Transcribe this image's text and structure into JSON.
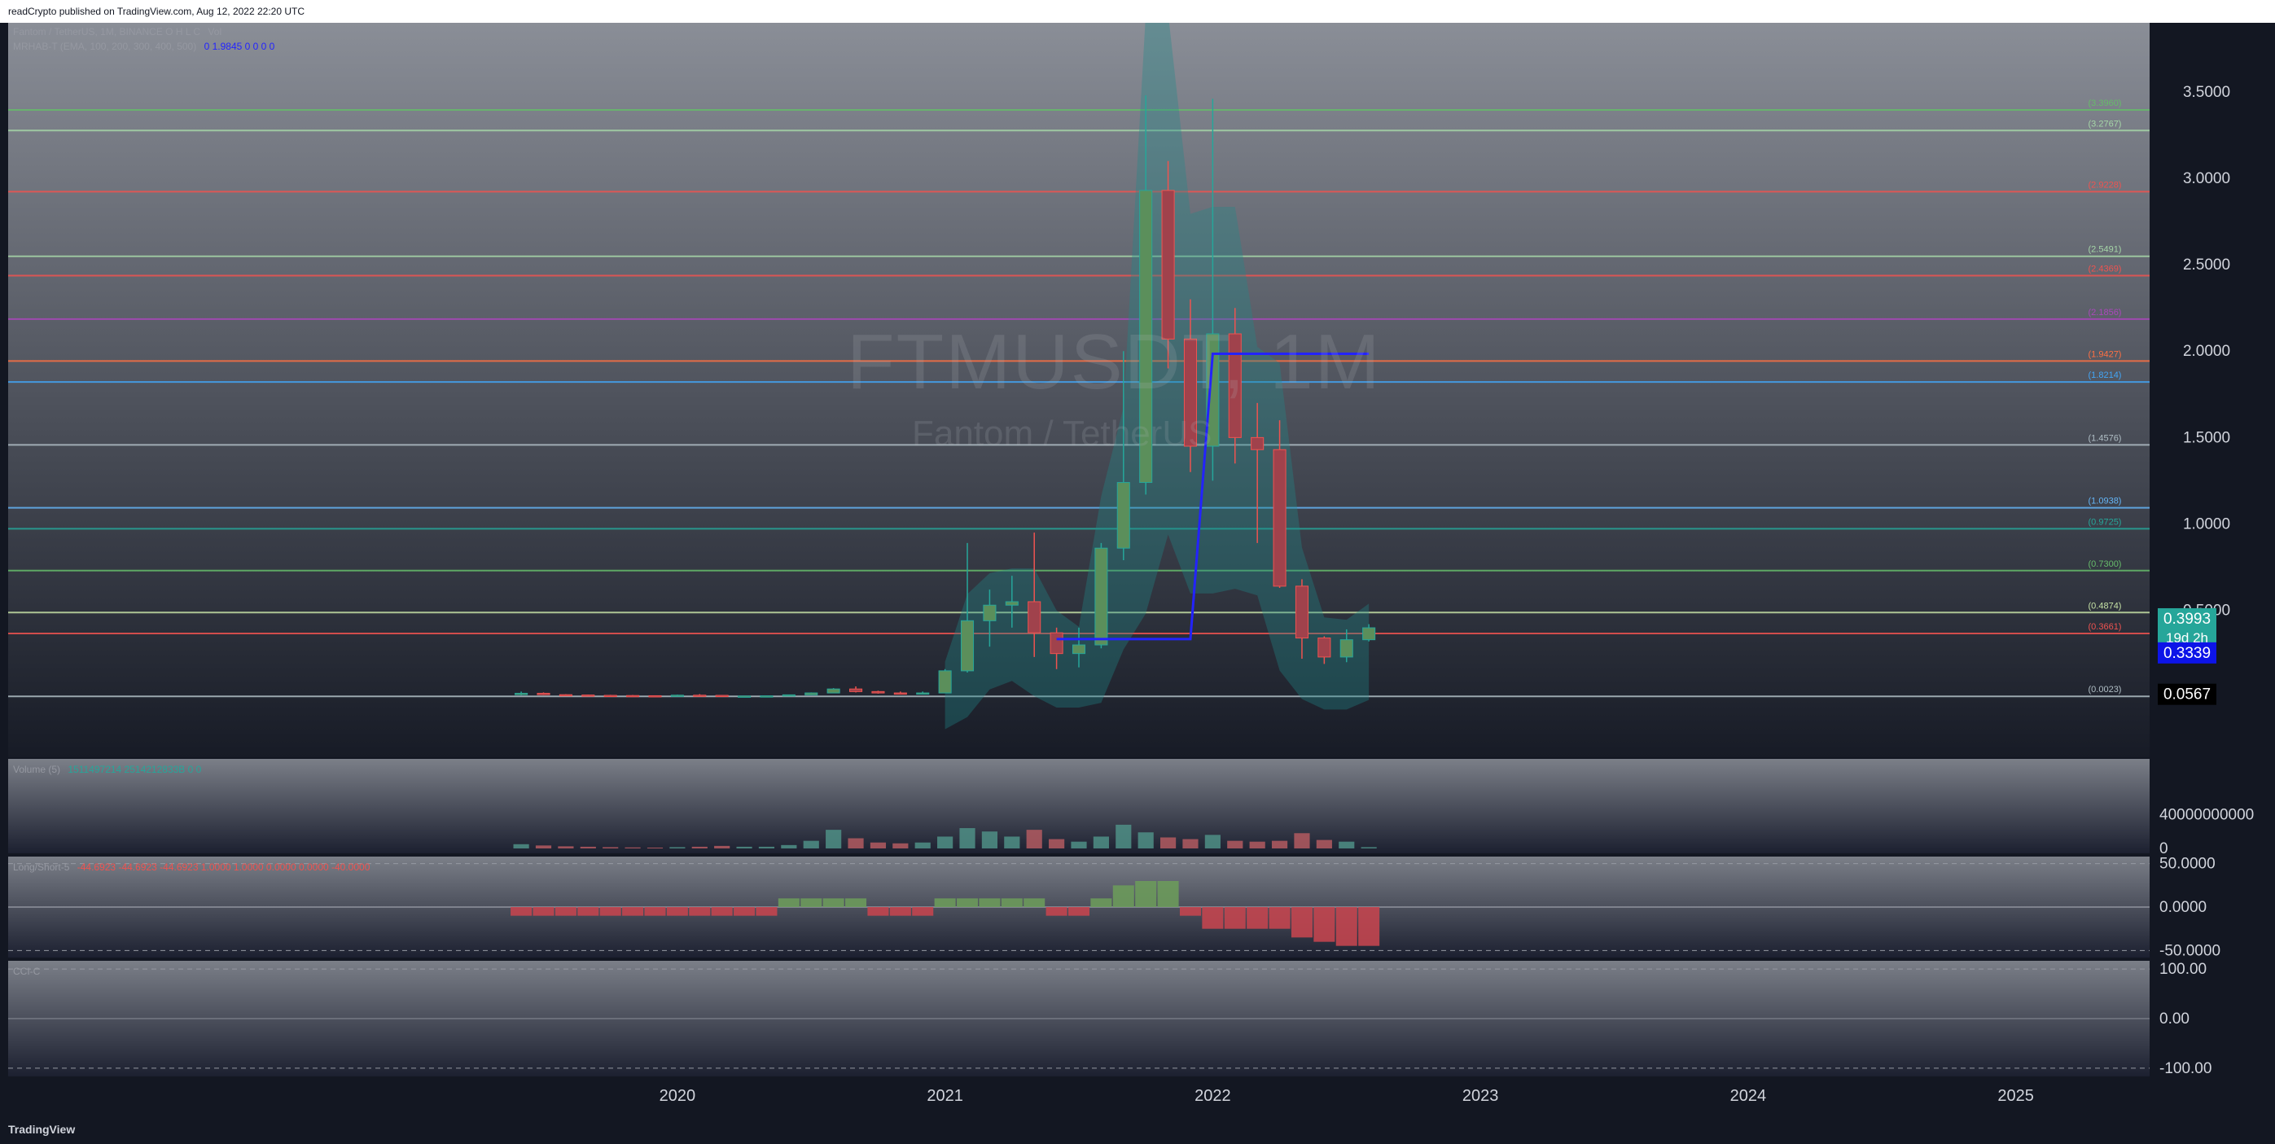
{
  "header": {
    "published_text": "readCrypto published on TradingView.com, Aug 12, 2022 22:20 UTC"
  },
  "footer": {
    "logo_text": "TradingView"
  },
  "watermark": {
    "symbol": "FTMUSDT, 1M",
    "name": "Fantom / TetherUS"
  },
  "legends": {
    "main": "Fantom / TetherUS, 1M, BINANCE  O  H  L  C",
    "main_vol": "Vol",
    "indicator": "MRHAB-T (EMA, 100, 200, 300, 400, 500)",
    "indicator_values": "0  1.9845  0  0  0  0",
    "volume": "Volume (5)",
    "volume_values": "1511497214  2514212833B  0  0",
    "longshort": "Long/Short-5",
    "longshort_values": "-44.6923  -44.6923  -44.6923  1.0000  1.0000  0.0000  0.0000  -40.0000",
    "cci": "CCI-C"
  },
  "price_axis": {
    "ticks": [
      "3.5000",
      "3.0000",
      "2.5000",
      "2.0000",
      "1.5000",
      "1.0000",
      "0.5000"
    ],
    "badges": [
      {
        "label": "0.3993",
        "sub": "19d 2h",
        "color": "#26a69a"
      },
      {
        "label": "0.3339",
        "color": "#0d14e8"
      },
      {
        "label": "0.0567",
        "color": "#000000"
      }
    ]
  },
  "volume_axis": {
    "ticks": [
      "40000000000",
      "0"
    ]
  },
  "ls_axis": {
    "ticks": [
      "50.0000",
      "0.0000",
      "-50.0000"
    ]
  },
  "cci_axis": {
    "ticks": [
      "100.00",
      "0.00",
      "-100.00"
    ]
  },
  "time_axis": {
    "ticks": [
      "2020",
      "2021",
      "2022",
      "2023",
      "2024",
      "2025"
    ]
  },
  "levels": [
    {
      "label": "(3.3960)",
      "value": 3.396,
      "color": "#66bb6a"
    },
    {
      "label": "(3.2767)",
      "value": 3.2767,
      "color": "#a5d6a7"
    },
    {
      "label": "(2.9228)",
      "value": 2.9228,
      "color": "#ef5350"
    },
    {
      "label": "(2.5491)",
      "value": 2.5491,
      "color": "#a5d6a7"
    },
    {
      "label": "(2.4369)",
      "value": 2.4369,
      "color": "#ef5350"
    },
    {
      "label": "(2.1856)",
      "value": 2.1856,
      "color": "#ab47bc"
    },
    {
      "label": "(1.9427)",
      "value": 1.9427,
      "color": "#ff7043"
    },
    {
      "label": "(1.8214)",
      "value": 1.8214,
      "color": "#42a5f5"
    },
    {
      "label": "(1.4576)",
      "value": 1.4576,
      "color": "#b0bec5"
    },
    {
      "label": "(1.0938)",
      "value": 1.0938,
      "color": "#64b5f6"
    },
    {
      "label": "(0.9725)",
      "value": 0.9725,
      "color": "#26a69a"
    },
    {
      "label": "(0.7300)",
      "value": 0.73,
      "color": "#66bb6a"
    },
    {
      "label": "(0.4874)",
      "value": 0.4874,
      "color": "#c5e1a5"
    },
    {
      "label": "(0.3661)",
      "value": 0.3661,
      "color": "#ef5350"
    },
    {
      "label": "(0.0023)",
      "value": 0.0023,
      "color": "#b0bec5"
    }
  ],
  "chart_data": {
    "type": "candlestick",
    "title": "FTMUSDT, 1M",
    "subtitle": "Fantom / TetherUS",
    "y_range": [
      -0.35,
      3.9
    ],
    "x_range": [
      "2017-07",
      "2025-07"
    ],
    "candles": [
      {
        "t": "2019-06",
        "o": 0.012,
        "h": 0.03,
        "l": 0.008,
        "c": 0.02
      },
      {
        "t": "2019-07",
        "o": 0.02,
        "h": 0.025,
        "l": 0.01,
        "c": 0.012
      },
      {
        "t": "2019-08",
        "o": 0.012,
        "h": 0.015,
        "l": 0.008,
        "c": 0.01
      },
      {
        "t": "2019-09",
        "o": 0.01,
        "h": 0.012,
        "l": 0.007,
        "c": 0.008
      },
      {
        "t": "2019-10",
        "o": 0.008,
        "h": 0.011,
        "l": 0.006,
        "c": 0.007
      },
      {
        "t": "2019-11",
        "o": 0.007,
        "h": 0.01,
        "l": 0.005,
        "c": 0.006
      },
      {
        "t": "2019-12",
        "o": 0.006,
        "h": 0.008,
        "l": 0.004,
        "c": 0.005
      },
      {
        "t": "2020-01",
        "o": 0.005,
        "h": 0.012,
        "l": 0.004,
        "c": 0.009
      },
      {
        "t": "2020-02",
        "o": 0.009,
        "h": 0.015,
        "l": 0.008,
        "c": 0.008
      },
      {
        "t": "2020-03",
        "o": 0.008,
        "h": 0.009,
        "l": 0.002,
        "c": 0.004
      },
      {
        "t": "2020-04",
        "o": 0.004,
        "h": 0.006,
        "l": 0.003,
        "c": 0.004
      },
      {
        "t": "2020-05",
        "o": 0.004,
        "h": 0.006,
        "l": 0.003,
        "c": 0.005
      },
      {
        "t": "2020-06",
        "o": 0.005,
        "h": 0.012,
        "l": 0.004,
        "c": 0.011
      },
      {
        "t": "2020-07",
        "o": 0.011,
        "h": 0.025,
        "l": 0.01,
        "c": 0.022
      },
      {
        "t": "2020-08",
        "o": 0.022,
        "h": 0.05,
        "l": 0.02,
        "c": 0.045
      },
      {
        "t": "2020-09",
        "o": 0.045,
        "h": 0.06,
        "l": 0.025,
        "c": 0.03
      },
      {
        "t": "2020-10",
        "o": 0.03,
        "h": 0.035,
        "l": 0.018,
        "c": 0.022
      },
      {
        "t": "2020-11",
        "o": 0.022,
        "h": 0.03,
        "l": 0.016,
        "c": 0.018
      },
      {
        "t": "2020-12",
        "o": 0.018,
        "h": 0.03,
        "l": 0.017,
        "c": 0.022
      },
      {
        "t": "2021-01",
        "o": 0.022,
        "h": 0.16,
        "l": 0.02,
        "c": 0.15
      },
      {
        "t": "2021-02",
        "o": 0.15,
        "h": 0.89,
        "l": 0.14,
        "c": 0.44
      },
      {
        "t": "2021-03",
        "o": 0.44,
        "h": 0.62,
        "l": 0.29,
        "c": 0.53
      },
      {
        "t": "2021-04",
        "o": 0.53,
        "h": 0.7,
        "l": 0.4,
        "c": 0.55
      },
      {
        "t": "2021-05",
        "o": 0.55,
        "h": 0.95,
        "l": 0.23,
        "c": 0.37
      },
      {
        "t": "2021-06",
        "o": 0.37,
        "h": 0.4,
        "l": 0.16,
        "c": 0.25
      },
      {
        "t": "2021-07",
        "o": 0.25,
        "h": 0.4,
        "l": 0.17,
        "c": 0.3
      },
      {
        "t": "2021-08",
        "o": 0.3,
        "h": 0.89,
        "l": 0.28,
        "c": 0.86
      },
      {
        "t": "2021-09",
        "o": 0.86,
        "h": 2.0,
        "l": 0.79,
        "c": 1.24
      },
      {
        "t": "2021-10",
        "o": 1.24,
        "h": 3.48,
        "l": 1.17,
        "c": 2.93
      },
      {
        "t": "2021-11",
        "o": 2.93,
        "h": 3.1,
        "l": 1.9,
        "c": 2.07
      },
      {
        "t": "2021-12",
        "o": 2.07,
        "h": 2.3,
        "l": 1.3,
        "c": 1.45
      },
      {
        "t": "2022-01",
        "o": 1.45,
        "h": 3.46,
        "l": 1.25,
        "c": 2.1
      },
      {
        "t": "2022-02",
        "o": 2.1,
        "h": 2.25,
        "l": 1.35,
        "c": 1.5
      },
      {
        "t": "2022-03",
        "o": 1.5,
        "h": 1.7,
        "l": 0.89,
        "c": 1.43
      },
      {
        "t": "2022-04",
        "o": 1.43,
        "h": 1.6,
        "l": 0.63,
        "c": 0.64
      },
      {
        "t": "2022-05",
        "o": 0.64,
        "h": 0.68,
        "l": 0.22,
        "c": 0.34
      },
      {
        "t": "2022-06",
        "o": 0.34,
        "h": 0.35,
        "l": 0.19,
        "c": 0.23
      },
      {
        "t": "2022-07",
        "o": 0.23,
        "h": 0.39,
        "l": 0.2,
        "c": 0.33
      },
      {
        "t": "2022-08",
        "o": 0.33,
        "h": 0.42,
        "l": 0.32,
        "c": 0.399
      }
    ],
    "mrhab_line": [
      {
        "t": "2021-06",
        "v": 0.3339
      },
      {
        "t": "2021-12",
        "v": 0.3339
      },
      {
        "t": "2022-01",
        "v": 1.9845
      },
      {
        "t": "2022-08",
        "v": 1.9845
      }
    ],
    "volume_scale": [
      0,
      100000000000
    ],
    "volume": [
      {
        "t": "2019-06",
        "v": 5000000000,
        "up": true
      },
      {
        "t": "2019-07",
        "v": 3500000000,
        "up": false
      },
      {
        "t": "2019-08",
        "v": 2500000000,
        "up": false
      },
      {
        "t": "2019-09",
        "v": 2000000000,
        "up": false
      },
      {
        "t": "2019-10",
        "v": 1500000000,
        "up": false
      },
      {
        "t": "2019-11",
        "v": 1200000000,
        "up": false
      },
      {
        "t": "2019-12",
        "v": 1000000000,
        "up": false
      },
      {
        "t": "2020-01",
        "v": 1500000000,
        "up": true
      },
      {
        "t": "2020-02",
        "v": 2000000000,
        "up": false
      },
      {
        "t": "2020-03",
        "v": 3000000000,
        "up": false
      },
      {
        "t": "2020-04",
        "v": 2000000000,
        "up": true
      },
      {
        "t": "2020-05",
        "v": 2000000000,
        "up": true
      },
      {
        "t": "2020-06",
        "v": 4000000000,
        "up": true
      },
      {
        "t": "2020-07",
        "v": 9000000000,
        "up": true
      },
      {
        "t": "2020-08",
        "v": 22000000000,
        "up": true
      },
      {
        "t": "2020-09",
        "v": 12000000000,
        "up": false
      },
      {
        "t": "2020-10",
        "v": 7000000000,
        "up": false
      },
      {
        "t": "2020-11",
        "v": 6000000000,
        "up": false
      },
      {
        "t": "2020-12",
        "v": 7000000000,
        "up": true
      },
      {
        "t": "2021-01",
        "v": 14000000000,
        "up": true
      },
      {
        "t": "2021-02",
        "v": 24000000000,
        "up": true
      },
      {
        "t": "2021-03",
        "v": 20000000000,
        "up": true
      },
      {
        "t": "2021-04",
        "v": 14000000000,
        "up": true
      },
      {
        "t": "2021-05",
        "v": 22000000000,
        "up": false
      },
      {
        "t": "2021-06",
        "v": 11000000000,
        "up": false
      },
      {
        "t": "2021-07",
        "v": 8000000000,
        "up": true
      },
      {
        "t": "2021-08",
        "v": 14000000000,
        "up": true
      },
      {
        "t": "2021-09",
        "v": 28000000000,
        "up": true
      },
      {
        "t": "2021-10",
        "v": 19000000000,
        "up": true
      },
      {
        "t": "2021-11",
        "v": 13000000000,
        "up": false
      },
      {
        "t": "2021-12",
        "v": 11000000000,
        "up": false
      },
      {
        "t": "2022-01",
        "v": 16000000000,
        "up": true
      },
      {
        "t": "2022-02",
        "v": 9000000000,
        "up": false
      },
      {
        "t": "2022-03",
        "v": 8000000000,
        "up": false
      },
      {
        "t": "2022-04",
        "v": 9000000000,
        "up": false
      },
      {
        "t": "2022-05",
        "v": 18000000000,
        "up": false
      },
      {
        "t": "2022-06",
        "v": 10000000000,
        "up": false
      },
      {
        "t": "2022-07",
        "v": 8000000000,
        "up": true
      },
      {
        "t": "2022-08",
        "v": 1511497214,
        "up": true
      }
    ],
    "longshort": [
      {
        "t": "2019-06",
        "v": -10
      },
      {
        "t": "2019-07",
        "v": -10
      },
      {
        "t": "2019-08",
        "v": -10
      },
      {
        "t": "2019-09",
        "v": -10
      },
      {
        "t": "2019-10",
        "v": -10
      },
      {
        "t": "2019-11",
        "v": -10
      },
      {
        "t": "2019-12",
        "v": -10
      },
      {
        "t": "2020-01",
        "v": -10
      },
      {
        "t": "2020-02",
        "v": -10
      },
      {
        "t": "2020-03",
        "v": -10
      },
      {
        "t": "2020-04",
        "v": -10
      },
      {
        "t": "2020-05",
        "v": -10
      },
      {
        "t": "2020-06",
        "v": 10
      },
      {
        "t": "2020-07",
        "v": 10
      },
      {
        "t": "2020-08",
        "v": 10
      },
      {
        "t": "2020-09",
        "v": 10
      },
      {
        "t": "2020-10",
        "v": -10
      },
      {
        "t": "2020-11",
        "v": -10
      },
      {
        "t": "2020-12",
        "v": -10
      },
      {
        "t": "2021-01",
        "v": 10
      },
      {
        "t": "2021-02",
        "v": 10
      },
      {
        "t": "2021-03",
        "v": 10
      },
      {
        "t": "2021-04",
        "v": 10
      },
      {
        "t": "2021-05",
        "v": 10
      },
      {
        "t": "2021-06",
        "v": -10
      },
      {
        "t": "2021-07",
        "v": -10
      },
      {
        "t": "2021-08",
        "v": 10
      },
      {
        "t": "2021-09",
        "v": 25
      },
      {
        "t": "2021-10",
        "v": 30
      },
      {
        "t": "2021-11",
        "v": 30
      },
      {
        "t": "2021-12",
        "v": -10
      },
      {
        "t": "2022-01",
        "v": -25
      },
      {
        "t": "2022-02",
        "v": -25
      },
      {
        "t": "2022-03",
        "v": -25
      },
      {
        "t": "2022-04",
        "v": -25
      },
      {
        "t": "2022-05",
        "v": -35
      },
      {
        "t": "2022-06",
        "v": -40
      },
      {
        "t": "2022-07",
        "v": -44.6923
      },
      {
        "t": "2022-08",
        "v": -44.6923
      }
    ],
    "ls_range": [
      -60,
      60
    ],
    "cci_range": [
      -120,
      120
    ]
  },
  "colors": {
    "up": "#26a69a",
    "down": "#ef5350",
    "up_fill": "#5b8f5b",
    "down_fill": "#a0424c",
    "band_fill": "#1f8a8a",
    "mrhab": "#2323ff"
  }
}
